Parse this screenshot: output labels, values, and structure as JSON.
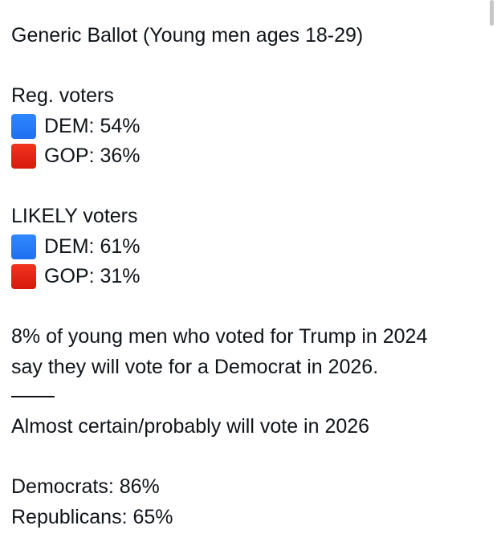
{
  "post": {
    "title": "Generic Ballot (Young men ages 18-29)",
    "reg_voters": {
      "heading": "Reg. voters",
      "items": [
        {
          "label": "DEM: 54%",
          "color": "#1f6ff0"
        },
        {
          "label": "GOP: 36%",
          "color": "#d51a0a"
        }
      ]
    },
    "likely_voters": {
      "heading": "LIKELY voters",
      "items": [
        {
          "label": "DEM: 61%",
          "color": "#1f6ff0"
        },
        {
          "label": "GOP: 31%",
          "color": "#d51a0a"
        }
      ]
    },
    "trump_note_line1": "8% of young men who voted for Trump in 2024",
    "trump_note_line2": "say they will vote for a Democrat in 2026.",
    "divider": "——",
    "turnout_heading": "Almost certain/probably will vote in 2026",
    "turnout_items": [
      "Democrats: 86%",
      "Republicans: 65%"
    ]
  }
}
